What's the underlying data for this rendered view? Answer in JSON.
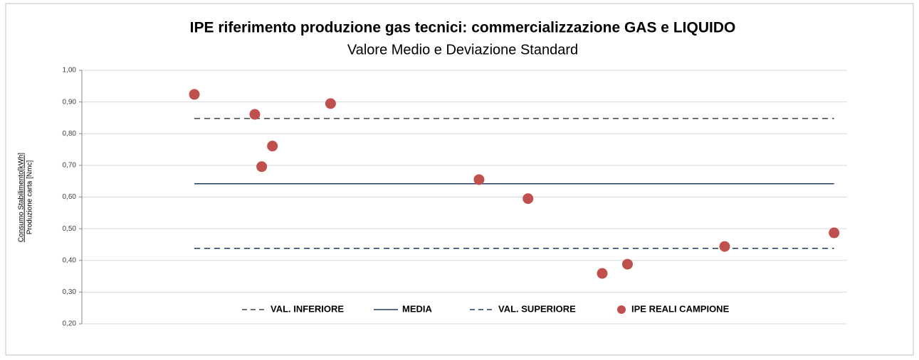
{
  "chart_data": {
    "type": "scatter",
    "title": "IPE riferimento produzione gas tecnici: commercializzazione GAS e LIQUIDO",
    "subtitle": "Valore Medio e Deviazione Standard",
    "ylabel": [
      "Consumo Stabilimento[kWh]",
      "Produzione carta [Nmc]"
    ],
    "xlim": [
      0,
      100
    ],
    "ylim": [
      0.2,
      1.0
    ],
    "yticks": [
      {
        "value": 0.2,
        "label": "0,20"
      },
      {
        "value": 0.3,
        "label": "0,30"
      },
      {
        "value": 0.4,
        "label": "0,40"
      },
      {
        "value": 0.5,
        "label": "0,50"
      },
      {
        "value": 0.6,
        "label": "0,60"
      },
      {
        "value": 0.7,
        "label": "0,70"
      },
      {
        "value": 0.8,
        "label": "0,80"
      },
      {
        "value": 0.9,
        "label": "0,90"
      },
      {
        "value": 1.0,
        "label": "1,00"
      }
    ],
    "grid": true,
    "legend": "bottom",
    "series": [
      {
        "name": "VAL. INFERIORE",
        "kind": "line",
        "line_style": "dashed",
        "color": "#404040",
        "x": [
          14.7,
          98.3
        ],
        "values": [
          0.848,
          0.848
        ]
      },
      {
        "name": "MEDIA",
        "kind": "line",
        "line_style": "solid",
        "color": "#1f3864",
        "x": [
          14.7,
          98.3
        ],
        "values": [
          0.642,
          0.642
        ]
      },
      {
        "name": "VAL. SUPERIORE",
        "kind": "line",
        "line_style": "dashed",
        "color": "#1f3864",
        "x": [
          14.7,
          98.3
        ],
        "values": [
          0.438,
          0.438
        ]
      },
      {
        "name": "IPE REALI CAMPIONE",
        "kind": "points",
        "color": "#c0504d",
        "x": [
          14.7,
          22.6,
          23.5,
          24.9,
          32.5,
          51.9,
          58.3,
          68.0,
          71.3,
          84.0,
          98.3
        ],
        "values": [
          0.924,
          0.861,
          0.696,
          0.761,
          0.895,
          0.655,
          0.595,
          0.359,
          0.388,
          0.444,
          0.487
        ]
      }
    ]
  }
}
